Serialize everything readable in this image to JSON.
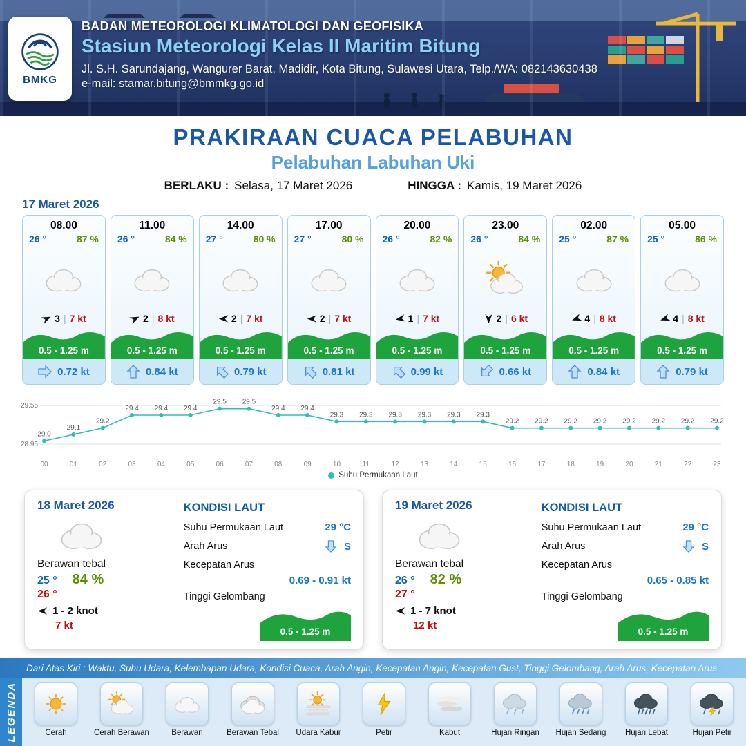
{
  "header": {
    "org": "BADAN METEOROLOGI KLIMATOLOGI DAN GEOFISIKA",
    "station": "Stasiun Meteorologi Kelas II Maritim Bitung",
    "address": "Jl. S.H. Sarundajang, Wangurer Barat, Madidir, Kota Bitung, Sulawesi Utara, Telp./WA: 082143630438",
    "email": "e-mail: stamar.bitung@bmmkg.go.id",
    "logo_label": "BMKG"
  },
  "title": {
    "main": "PRAKIRAAN CUACA PELABUHAN",
    "port": "Pelabuhan Labuhan Uki",
    "berlaku_label": "BERLAKU :",
    "berlaku_value": "Selasa, 17 Maret 2026",
    "hingga_label": "HINGGA :",
    "hingga_value": "Kamis, 19 Maret 2026"
  },
  "forecast": {
    "date": "17 Maret 2026",
    "cards": [
      {
        "time": "08.00",
        "temp": "26 °",
        "humidity": "87 %",
        "weather_icon": "cloud",
        "wind_rot": -25,
        "wind_num": "3",
        "wind_speed": "7 kt",
        "wave": "0.5 - 1.25 m",
        "current_rot": 90,
        "current": "0.72 kt"
      },
      {
        "time": "11.00",
        "temp": "26 °",
        "humidity": "84 %",
        "weather_icon": "cloud",
        "wind_rot": -25,
        "wind_num": "2",
        "wind_speed": "8 kt",
        "wave": "0.5 - 1.25 m",
        "current_rot": 0,
        "current": "0.84 kt"
      },
      {
        "time": "14.00",
        "temp": "27 °",
        "humidity": "80 %",
        "weather_icon": "cloud",
        "wind_rot": 180,
        "wind_num": "2",
        "wind_speed": "7 kt",
        "wave": "0.5 - 1.25 m",
        "current_rot": -45,
        "current": "0.79 kt"
      },
      {
        "time": "17.00",
        "temp": "27 °",
        "humidity": "80 %",
        "weather_icon": "cloud",
        "wind_rot": 180,
        "wind_num": "2",
        "wind_speed": "7 kt",
        "wave": "0.5 - 1.25 m",
        "current_rot": -45,
        "current": "0.81 kt"
      },
      {
        "time": "20.00",
        "temp": "26 °",
        "humidity": "82 %",
        "weather_icon": "cloud",
        "wind_rot": 170,
        "wind_num": "1",
        "wind_speed": "7 kt",
        "wave": "0.5 - 1.25 m",
        "current_rot": -45,
        "current": "0.99 kt"
      },
      {
        "time": "23.00",
        "temp": "26 °",
        "humidity": "84 %",
        "weather_icon": "sun-cloud",
        "wind_rot": 90,
        "wind_num": "2",
        "wind_speed": "6 kt",
        "wave": "0.5 - 1.25 m",
        "current_rot": -135,
        "current": "0.66 kt"
      },
      {
        "time": "02.00",
        "temp": "25 °",
        "humidity": "87 %",
        "weather_icon": "cloud",
        "wind_rot": 160,
        "wind_num": "4",
        "wind_speed": "8 kt",
        "wave": "0.5 - 1.25 m",
        "current_rot": 0,
        "current": "0.84 kt"
      },
      {
        "time": "05.00",
        "temp": "25 °",
        "humidity": "86 %",
        "weather_icon": "cloud",
        "wind_rot": 160,
        "wind_num": "4",
        "wind_speed": "8 kt",
        "wave": "0.5 - 1.25 m",
        "current_rot": 0,
        "current": "0.79 kt"
      }
    ]
  },
  "chart_data": {
    "type": "line",
    "x": [
      "00",
      "01",
      "02",
      "03",
      "04",
      "05",
      "06",
      "07",
      "08",
      "09",
      "10",
      "11",
      "12",
      "13",
      "14",
      "15",
      "16",
      "17",
      "18",
      "19",
      "20",
      "21",
      "22",
      "23"
    ],
    "series": [
      {
        "name": "Suhu Permukaan Laut",
        "values": [
          29.0,
          29.1,
          29.2,
          29.4,
          29.4,
          29.4,
          29.5,
          29.5,
          29.4,
          29.4,
          29.3,
          29.3,
          29.3,
          29.3,
          29.3,
          29.3,
          29.2,
          29.2,
          29.2,
          29.2,
          29.2,
          29.2,
          29.2,
          29.2
        ]
      }
    ],
    "ylim": [
      28.95,
      29.55
    ],
    "yticks": [
      29.55,
      28.95
    ],
    "line_color": "#2fbfb0",
    "grid": true,
    "legend_position": "bottom"
  },
  "daily": [
    {
      "date": "18 Maret 2026",
      "weather_icon": "cloud",
      "condition": "Berawan tebal",
      "temp_min": "25 °",
      "humidity": "84 %",
      "temp_max": "26 °",
      "wind": "1  - 2 knot",
      "wind_speed": "7 kt",
      "sea_title": "KONDISI LAUT",
      "sst_label": "Suhu Permukaan Laut",
      "sst": "29 °C",
      "current_dir_label": "Arah Arus",
      "current_dir": "S",
      "current_speed_label": "Kecepatan Arus",
      "current_speed": "0.69 - 0.91 kt",
      "wave_label": "Tinggi Gelombang",
      "wave": "0.5 - 1.25 m"
    },
    {
      "date": "19 Maret 2026",
      "weather_icon": "cloud",
      "condition": "Berawan tebal",
      "temp_min": "26 °",
      "humidity": "82 %",
      "temp_max": "27 °",
      "wind": "1  - 7 knot",
      "wind_speed": "12 kt",
      "sea_title": "KONDISI LAUT",
      "sst_label": "Suhu Permukaan Laut",
      "sst": "29 °C",
      "current_dir_label": "Arah Arus",
      "current_dir": "S",
      "current_speed_label": "Kecepatan Arus",
      "current_speed": "0.65 - 0.85 kt",
      "wave_label": "Tinggi Gelombang",
      "wave": "0.5 - 1.25 m"
    }
  ],
  "legend": {
    "caption": "Dari Atas Kiri : Waktu, Suhu Udara, Kelembapan Udara, Kondisi Cuaca, Arah Angin, Kecepatan Angin, Kecepatan Gust, Tinggi Gelombang, Arah Arus, Kecepatan Arus",
    "title": "LEGENDA",
    "items": [
      {
        "label": "Cerah",
        "icon": "sun"
      },
      {
        "label": "Cerah Berawan",
        "icon": "sun-cloud"
      },
      {
        "label": "Berawan",
        "icon": "cloud"
      },
      {
        "label": "Berawan Tebal",
        "icon": "cloud-thick"
      },
      {
        "label": "Udara Kabur",
        "icon": "hazy-sun"
      },
      {
        "label": "Petir",
        "icon": "lightning"
      },
      {
        "label": "Kabut",
        "icon": "fog"
      },
      {
        "label": "Hujan Ringan",
        "icon": "light-rain"
      },
      {
        "label": "Hujan Sedang",
        "icon": "moderate-rain"
      },
      {
        "label": "Hujan Lebat",
        "icon": "heavy-rain"
      },
      {
        "label": "Hujan Petir",
        "icon": "thunderstorm"
      }
    ]
  },
  "colors": {
    "accent_blue": "#1a57a8",
    "light_blue": "#56a0e0",
    "wave_green": "#1fa33c",
    "wind_red": "#c21010",
    "humidity_green": "#5a8f00",
    "sst_line": "#2fbfb0"
  }
}
